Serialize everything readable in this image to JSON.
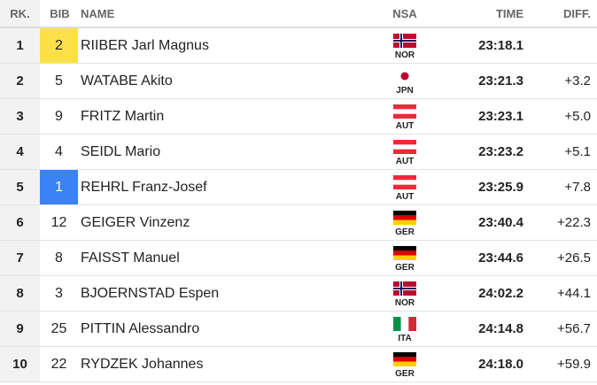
{
  "header": {
    "rank": "RK.",
    "bib": "BIB",
    "name": "NAME",
    "nsa": "NSA",
    "time": "TIME",
    "diff": "DIFF."
  },
  "rows": [
    {
      "rank": 1,
      "bib": 2,
      "bib_color": "#fde047",
      "name": "RIIBER Jarl Magnus",
      "nsa": "NOR",
      "time": "23:18.1"
    },
    {
      "rank": 2,
      "bib": 5,
      "name": "WATABE Akito",
      "nsa": "JPN",
      "time": "23:21.3",
      "diff": "+3.2"
    },
    {
      "rank": 3,
      "bib": 9,
      "name": "FRITZ Martin",
      "nsa": "AUT",
      "time": "23:23.1",
      "diff": "+5.0"
    },
    {
      "rank": 4,
      "bib": 4,
      "name": "SEIDL Mario",
      "nsa": "AUT",
      "time": "23:23.2",
      "diff": "+5.1"
    },
    {
      "rank": 5,
      "bib": 1,
      "bib_color": "#3b82f6",
      "name": "REHRL Franz-Josef",
      "nsa": "AUT",
      "time": "23:25.9",
      "diff": "+7.8"
    },
    {
      "rank": 6,
      "bib": 12,
      "name": "GEIGER Vinzenz",
      "nsa": "GER",
      "time": "23:40.4",
      "diff": "+22.3"
    },
    {
      "rank": 7,
      "bib": 8,
      "name": "FAISST Manuel",
      "nsa": "GER",
      "time": "23:44.6",
      "diff": "+26.5"
    },
    {
      "rank": 8,
      "bib": 3,
      "name": "BJOERNSTAD Espen",
      "nsa": "NOR",
      "time": "24:02.2",
      "diff": "+44.1"
    },
    {
      "rank": 9,
      "bib": 25,
      "name": "PITTIN Alessandro",
      "nsa": "ITA",
      "time": "24:14.8",
      "diff": "+56.7"
    },
    {
      "rank": 10,
      "bib": 22,
      "name": "RYDZEK Johannes",
      "nsa": "GER",
      "time": "24:18.0",
      "diff": "+59.9"
    }
  ]
}
